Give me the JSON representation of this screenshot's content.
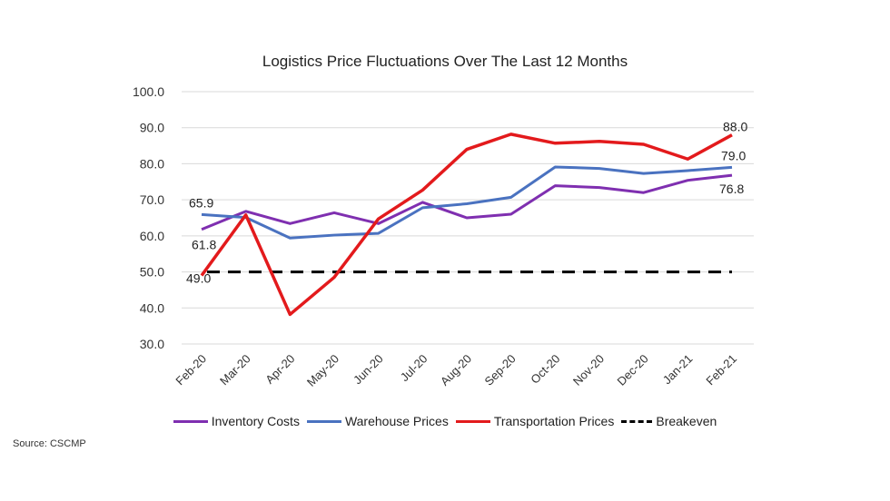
{
  "chart_data": {
    "type": "line",
    "title": "Logistics Price Fluctuations Over The Last 12 Months",
    "xlabel": "",
    "ylabel": "",
    "ylim": [
      30,
      100
    ],
    "yticks": [
      "30.0",
      "40.0",
      "50.0",
      "60.0",
      "70.0",
      "80.0",
      "90.0",
      "100.0"
    ],
    "grid": true,
    "legend_position": "bottom",
    "categories": [
      "Feb-20",
      "Mar-20",
      "Apr-20",
      "May-20",
      "Jun-20",
      "Jul-20",
      "Aug-20",
      "Sep-20",
      "Oct-20",
      "Nov-20",
      "Dec-20",
      "Jan-21",
      "Feb-21"
    ],
    "series": [
      {
        "name": "Inventory Costs",
        "color": "#7f2fb0",
        "dashed": false,
        "values": [
          61.8,
          66.8,
          63.4,
          66.4,
          63.4,
          69.3,
          65.0,
          66.0,
          73.9,
          73.4,
          72.0,
          75.4,
          76.8
        ]
      },
      {
        "name": "Warehouse Prices",
        "color": "#4a72c0",
        "dashed": false,
        "values": [
          65.9,
          65.1,
          59.4,
          60.2,
          60.7,
          67.8,
          68.9,
          70.7,
          79.1,
          78.7,
          77.3,
          78.1,
          79.0
        ]
      },
      {
        "name": "Transportation Prices",
        "color": "#e31a1c",
        "dashed": false,
        "values": [
          49.0,
          65.8,
          38.2,
          48.5,
          64.7,
          72.7,
          84.0,
          88.2,
          85.7,
          86.2,
          85.4,
          81.3,
          88.0
        ]
      },
      {
        "name": "Breakeven",
        "color": "#000000",
        "dashed": true,
        "values": [
          50,
          50,
          50,
          50,
          50,
          50,
          50,
          50,
          50,
          50,
          50,
          50,
          50
        ]
      }
    ],
    "annotations": [
      {
        "series": "Warehouse Prices",
        "index": 0,
        "text": "65.9"
      },
      {
        "series": "Inventory Costs",
        "index": 0,
        "text": "61.8"
      },
      {
        "series": "Transportation Prices",
        "index": 0,
        "text": "49.0"
      },
      {
        "series": "Transportation Prices",
        "index": 12,
        "text": "88.0"
      },
      {
        "series": "Warehouse Prices",
        "index": 12,
        "text": "79.0"
      },
      {
        "series": "Inventory Costs",
        "index": 12,
        "text": "76.8"
      }
    ]
  },
  "source": "Source:  CSCMP"
}
